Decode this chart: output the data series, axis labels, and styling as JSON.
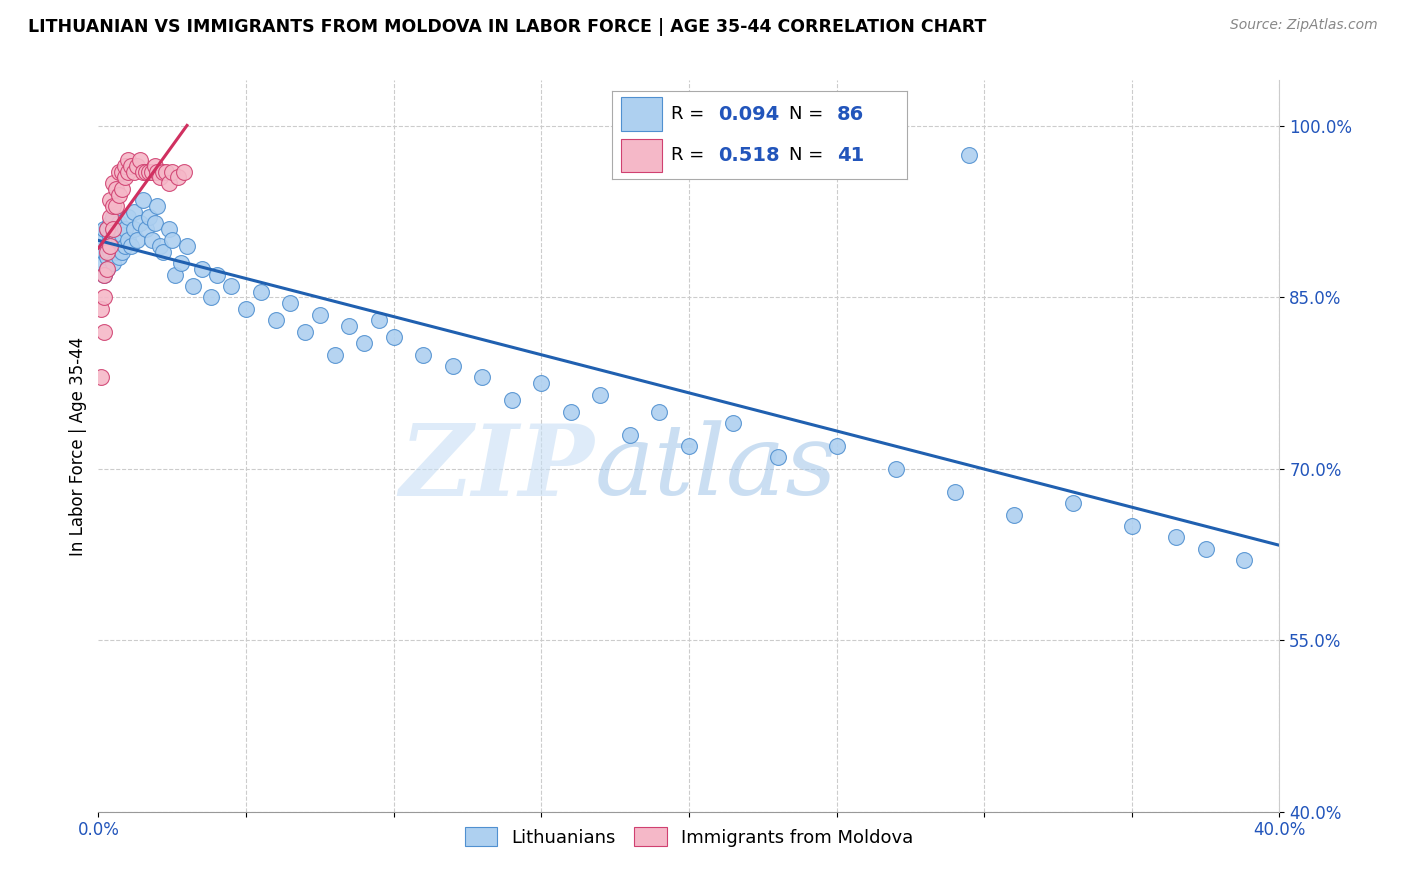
{
  "title": "LITHUANIAN VS IMMIGRANTS FROM MOLDOVA IN LABOR FORCE | AGE 35-44 CORRELATION CHART",
  "source": "Source: ZipAtlas.com",
  "ylabel": "In Labor Force | Age 35-44",
  "xlim": [
    0.0,
    0.4
  ],
  "ylim": [
    0.4,
    1.04
  ],
  "xticks": [
    0.0,
    0.05,
    0.1,
    0.15,
    0.2,
    0.25,
    0.3,
    0.35,
    0.4
  ],
  "yticks": [
    0.4,
    0.55,
    0.7,
    0.85,
    1.0
  ],
  "ytick_labels": [
    "40.0%",
    "55.0%",
    "70.0%",
    "85.0%",
    "100.0%"
  ],
  "blue_color": "#aed0f0",
  "pink_color": "#f5b8c8",
  "blue_edge_color": "#5090d0",
  "pink_edge_color": "#d04070",
  "blue_line_color": "#2060b0",
  "pink_line_color": "#d03060",
  "legend_label_blue": "Lithuanians",
  "legend_label_pink": "Immigrants from Moldova",
  "watermark_zip": "ZIP",
  "watermark_atlas": "atlas",
  "blue_R": 0.094,
  "blue_N": 86,
  "pink_R": 0.518,
  "pink_N": 41,
  "blue_x": [
    0.001,
    0.001,
    0.002,
    0.002,
    0.002,
    0.003,
    0.003,
    0.003,
    0.003,
    0.004,
    0.004,
    0.004,
    0.004,
    0.005,
    0.005,
    0.005,
    0.005,
    0.006,
    0.006,
    0.006,
    0.007,
    0.007,
    0.007,
    0.008,
    0.008,
    0.009,
    0.009,
    0.01,
    0.01,
    0.011,
    0.012,
    0.012,
    0.013,
    0.014,
    0.015,
    0.016,
    0.017,
    0.018,
    0.019,
    0.02,
    0.021,
    0.022,
    0.024,
    0.025,
    0.026,
    0.028,
    0.03,
    0.032,
    0.035,
    0.038,
    0.04,
    0.045,
    0.05,
    0.055,
    0.06,
    0.065,
    0.07,
    0.075,
    0.08,
    0.085,
    0.09,
    0.095,
    0.1,
    0.11,
    0.12,
    0.13,
    0.14,
    0.15,
    0.16,
    0.17,
    0.18,
    0.19,
    0.2,
    0.215,
    0.23,
    0.25,
    0.27,
    0.29,
    0.31,
    0.33,
    0.35,
    0.365,
    0.375,
    0.388,
    0.295,
    0.248
  ],
  "blue_y": [
    0.88,
    0.9,
    0.87,
    0.89,
    0.91,
    0.875,
    0.885,
    0.895,
    0.91,
    0.89,
    0.9,
    0.905,
    0.915,
    0.88,
    0.895,
    0.905,
    0.92,
    0.89,
    0.9,
    0.91,
    0.885,
    0.9,
    0.915,
    0.89,
    0.905,
    0.895,
    0.91,
    0.9,
    0.92,
    0.895,
    0.91,
    0.925,
    0.9,
    0.915,
    0.935,
    0.91,
    0.92,
    0.9,
    0.915,
    0.93,
    0.895,
    0.89,
    0.91,
    0.9,
    0.87,
    0.88,
    0.895,
    0.86,
    0.875,
    0.85,
    0.87,
    0.86,
    0.84,
    0.855,
    0.83,
    0.845,
    0.82,
    0.835,
    0.8,
    0.825,
    0.81,
    0.83,
    0.815,
    0.8,
    0.79,
    0.78,
    0.76,
    0.775,
    0.75,
    0.765,
    0.73,
    0.75,
    0.72,
    0.74,
    0.71,
    0.72,
    0.7,
    0.68,
    0.66,
    0.67,
    0.65,
    0.64,
    0.63,
    0.62,
    0.975,
    0.965
  ],
  "pink_x": [
    0.001,
    0.001,
    0.002,
    0.002,
    0.002,
    0.003,
    0.003,
    0.003,
    0.004,
    0.004,
    0.004,
    0.005,
    0.005,
    0.005,
    0.006,
    0.006,
    0.007,
    0.007,
    0.008,
    0.008,
    0.009,
    0.009,
    0.01,
    0.01,
    0.011,
    0.012,
    0.013,
    0.014,
    0.015,
    0.016,
    0.017,
    0.018,
    0.019,
    0.02,
    0.021,
    0.022,
    0.023,
    0.024,
    0.025,
    0.027,
    0.029
  ],
  "pink_y": [
    0.78,
    0.84,
    0.82,
    0.87,
    0.85,
    0.875,
    0.89,
    0.91,
    0.895,
    0.92,
    0.935,
    0.91,
    0.93,
    0.95,
    0.93,
    0.945,
    0.94,
    0.96,
    0.945,
    0.96,
    0.955,
    0.965,
    0.96,
    0.97,
    0.965,
    0.96,
    0.965,
    0.97,
    0.96,
    0.96,
    0.96,
    0.96,
    0.965,
    0.96,
    0.955,
    0.96,
    0.96,
    0.95,
    0.96,
    0.955,
    0.96
  ]
}
